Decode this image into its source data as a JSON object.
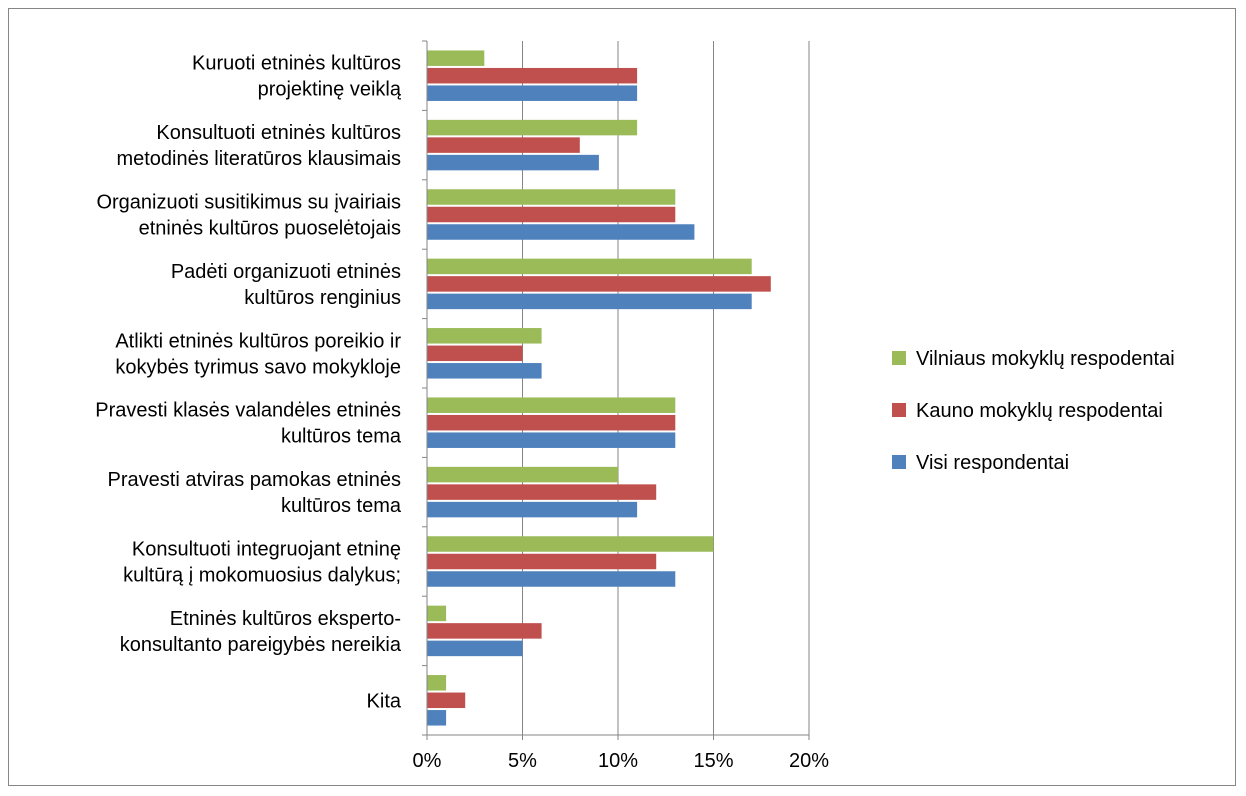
{
  "chart_data": {
    "type": "bar",
    "orientation": "horizontal",
    "categories": [
      [
        "Kuruoti etninės kultūros",
        "projektinę veiklą"
      ],
      [
        "Konsultuoti etninės kultūros",
        "metodinės literatūros klausimais"
      ],
      [
        "Organizuoti susitikimus su įvairiais",
        "etninės kultūros puoselėtojais"
      ],
      [
        "Padėti organizuoti etninės",
        "kultūros renginius"
      ],
      [
        "Atlikti etninės kultūros poreikio ir",
        "kokybės tyrimus savo mokykloje"
      ],
      [
        "Pravesti klasės valandėles etninės",
        "kultūros tema"
      ],
      [
        "Pravesti atviras pamokas etninės",
        "kultūros tema"
      ],
      [
        "Konsultuoti integruojant etninę",
        "kultūrą į mokomuosius dalykus;"
      ],
      [
        "Etninės kultūros eksperto-",
        "konsultanto pareigybės nereikia"
      ],
      [
        "Kita"
      ]
    ],
    "series": [
      {
        "name": "Vilniaus mokyklų respodentai",
        "color": "#9bbb59",
        "values": [
          3,
          11,
          13,
          17,
          6,
          13,
          10,
          15,
          1,
          1
        ]
      },
      {
        "name": "Kauno mokyklų respodentai",
        "color": "#c0504d",
        "values": [
          11,
          8,
          13,
          18,
          5,
          13,
          12,
          12,
          6,
          2
        ]
      },
      {
        "name": "Visi respondentai",
        "color": "#4f81bd",
        "values": [
          11,
          9,
          14,
          17,
          6,
          13,
          11,
          13,
          5,
          1
        ]
      }
    ],
    "xlim": [
      0,
      20
    ],
    "xticks": [
      "0%",
      "5%",
      "10%",
      "15%",
      "20%"
    ],
    "grid": true,
    "legend_position": "right"
  }
}
